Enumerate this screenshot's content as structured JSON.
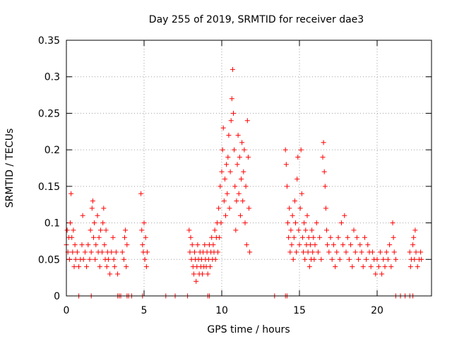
{
  "chart_data": {
    "type": "scatter",
    "title": "Day 255 of 2019, SRMTID for receiver dae3",
    "xlabel": "GPS time / hours",
    "ylabel": "SRMTID / TECUs",
    "xlim": [
      0,
      23.5
    ],
    "ylim": [
      0,
      0.35
    ],
    "x_ticks": [
      0,
      5,
      10,
      15,
      20
    ],
    "x_tick_labels": [
      "0",
      "5",
      "10",
      "15",
      "20"
    ],
    "y_ticks": [
      0,
      0.05,
      0.1,
      0.15,
      0.2,
      0.25,
      0.3,
      0.35
    ],
    "y_tick_labels": [
      "0",
      "0.05",
      "0.1",
      "0.15",
      "0.2",
      "0.25",
      "0.3",
      "0.35"
    ],
    "grid": true,
    "marker": "+",
    "color": "#ff0000",
    "series": [
      {
        "name": "SRMTID",
        "points": [
          [
            0.0,
            0.07
          ],
          [
            0.05,
            0.09
          ],
          [
            0.1,
            0.06
          ],
          [
            0.15,
            0.08
          ],
          [
            0.2,
            0.05
          ],
          [
            0.25,
            0.1
          ],
          [
            0.3,
            0.14
          ],
          [
            0.35,
            0.08
          ],
          [
            0.4,
            0.06
          ],
          [
            0.45,
            0.09
          ],
          [
            0.5,
            0.04
          ],
          [
            0.55,
            0.07
          ],
          [
            0.6,
            0.05
          ],
          [
            0.7,
            0.06
          ],
          [
            0.8,
            0.04
          ],
          [
            0.9,
            0.05
          ],
          [
            1.0,
            0.07
          ],
          [
            1.05,
            0.11
          ],
          [
            1.1,
            0.05
          ],
          [
            1.2,
            0.06
          ],
          [
            1.3,
            0.04
          ],
          [
            1.4,
            0.07
          ],
          [
            1.5,
            0.05
          ],
          [
            1.55,
            0.09
          ],
          [
            1.6,
            0.06
          ],
          [
            1.65,
            0.12
          ],
          [
            1.7,
            0.13
          ],
          [
            1.75,
            0.08
          ],
          [
            1.8,
            0.1
          ],
          [
            1.85,
            0.05
          ],
          [
            1.9,
            0.07
          ],
          [
            2.0,
            0.11
          ],
          [
            2.05,
            0.06
          ],
          [
            2.1,
            0.08
          ],
          [
            2.15,
            0.04
          ],
          [
            2.2,
            0.09
          ],
          [
            2.3,
            0.06
          ],
          [
            2.35,
            0.1
          ],
          [
            2.4,
            0.12
          ],
          [
            2.45,
            0.07
          ],
          [
            2.5,
            0.05
          ],
          [
            2.55,
            0.09
          ],
          [
            2.6,
            0.04
          ],
          [
            2.65,
            0.06
          ],
          [
            2.7,
            0.05
          ],
          [
            2.8,
            0.03
          ],
          [
            2.9,
            0.06
          ],
          [
            3.0,
            0.08
          ],
          [
            3.05,
            0.05
          ],
          [
            3.1,
            0.04
          ],
          [
            3.2,
            0.06
          ],
          [
            3.3,
            0.03
          ],
          [
            3.6,
            0.06
          ],
          [
            3.7,
            0.05
          ],
          [
            3.75,
            0.08
          ],
          [
            3.8,
            0.09
          ],
          [
            3.85,
            0.04
          ],
          [
            3.9,
            0.07
          ],
          [
            4.8,
            0.14
          ],
          [
            4.85,
            0.09
          ],
          [
            4.9,
            0.07
          ],
          [
            4.95,
            0.06
          ],
          [
            5.0,
            0.1
          ],
          [
            5.05,
            0.05
          ],
          [
            5.1,
            0.08
          ],
          [
            5.15,
            0.04
          ],
          [
            5.2,
            0.06
          ],
          [
            7.9,
            0.09
          ],
          [
            7.95,
            0.06
          ],
          [
            8.0,
            0.08
          ],
          [
            8.05,
            0.05
          ],
          [
            8.1,
            0.07
          ],
          [
            8.15,
            0.04
          ],
          [
            8.2,
            0.03
          ],
          [
            8.25,
            0.06
          ],
          [
            8.3,
            0.05
          ],
          [
            8.35,
            0.02
          ],
          [
            8.4,
            0.04
          ],
          [
            8.45,
            0.07
          ],
          [
            8.5,
            0.05
          ],
          [
            8.55,
            0.03
          ],
          [
            8.6,
            0.06
          ],
          [
            8.65,
            0.04
          ],
          [
            8.7,
            0.05
          ],
          [
            8.75,
            0.03
          ],
          [
            8.8,
            0.06
          ],
          [
            8.85,
            0.04
          ],
          [
            8.9,
            0.07
          ],
          [
            8.95,
            0.05
          ],
          [
            9.0,
            0.04
          ],
          [
            9.05,
            0.06
          ],
          [
            9.1,
            0.03
          ],
          [
            9.15,
            0.05
          ],
          [
            9.2,
            0.07
          ],
          [
            9.25,
            0.04
          ],
          [
            9.3,
            0.06
          ],
          [
            9.35,
            0.08
          ],
          [
            9.4,
            0.05
          ],
          [
            9.45,
            0.07
          ],
          [
            9.5,
            0.06
          ],
          [
            9.55,
            0.09
          ],
          [
            9.6,
            0.05
          ],
          [
            9.65,
            0.08
          ],
          [
            9.7,
            0.1
          ],
          [
            9.75,
            0.06
          ],
          [
            9.8,
            0.12
          ],
          [
            9.85,
            0.08
          ],
          [
            9.9,
            0.15
          ],
          [
            9.95,
            0.1
          ],
          [
            10.0,
            0.17
          ],
          [
            10.05,
            0.2
          ],
          [
            10.1,
            0.23
          ],
          [
            10.15,
            0.13
          ],
          [
            10.2,
            0.16
          ],
          [
            10.25,
            0.11
          ],
          [
            10.3,
            0.18
          ],
          [
            10.35,
            0.14
          ],
          [
            10.4,
            0.19
          ],
          [
            10.45,
            0.22
          ],
          [
            10.5,
            0.12
          ],
          [
            10.55,
            0.17
          ],
          [
            10.6,
            0.24
          ],
          [
            10.65,
            0.27
          ],
          [
            10.7,
            0.31
          ],
          [
            10.75,
            0.25
          ],
          [
            10.8,
            0.2
          ],
          [
            10.85,
            0.15
          ],
          [
            10.9,
            0.09
          ],
          [
            10.95,
            0.13
          ],
          [
            11.0,
            0.18
          ],
          [
            11.05,
            0.22
          ],
          [
            11.1,
            0.14
          ],
          [
            11.15,
            0.19
          ],
          [
            11.2,
            0.11
          ],
          [
            11.25,
            0.16
          ],
          [
            11.3,
            0.21
          ],
          [
            11.35,
            0.13
          ],
          [
            11.4,
            0.17
          ],
          [
            11.45,
            0.2
          ],
          [
            11.5,
            0.1
          ],
          [
            11.55,
            0.15
          ],
          [
            11.6,
            0.07
          ],
          [
            11.65,
            0.24
          ],
          [
            11.7,
            0.19
          ],
          [
            11.75,
            0.12
          ],
          [
            11.8,
            0.06
          ],
          [
            14.1,
            0.2
          ],
          [
            14.15,
            0.18
          ],
          [
            14.2,
            0.15
          ],
          [
            14.25,
            0.1
          ],
          [
            14.3,
            0.08
          ],
          [
            14.35,
            0.12
          ],
          [
            14.4,
            0.06
          ],
          [
            14.45,
            0.09
          ],
          [
            14.5,
            0.07
          ],
          [
            14.55,
            0.11
          ],
          [
            14.6,
            0.05
          ],
          [
            14.65,
            0.08
          ],
          [
            14.7,
            0.13
          ],
          [
            14.75,
            0.1
          ],
          [
            14.8,
            0.06
          ],
          [
            14.85,
            0.16
          ],
          [
            14.9,
            0.19
          ],
          [
            14.95,
            0.09
          ],
          [
            15.0,
            0.07
          ],
          [
            15.05,
            0.12
          ],
          [
            15.1,
            0.2
          ],
          [
            15.15,
            0.14
          ],
          [
            15.2,
            0.08
          ],
          [
            15.25,
            0.06
          ],
          [
            15.3,
            0.1
          ],
          [
            15.35,
            0.05
          ],
          [
            15.4,
            0.09
          ],
          [
            15.45,
            0.07
          ],
          [
            15.5,
            0.11
          ],
          [
            15.55,
            0.06
          ],
          [
            15.6,
            0.08
          ],
          [
            15.65,
            0.04
          ],
          [
            15.7,
            0.07
          ],
          [
            15.75,
            0.05
          ],
          [
            15.8,
            0.09
          ],
          [
            15.85,
            0.06
          ],
          [
            15.9,
            0.08
          ],
          [
            15.95,
            0.05
          ],
          [
            16.0,
            0.07
          ],
          [
            16.1,
            0.1
          ],
          [
            16.2,
            0.06
          ],
          [
            16.3,
            0.08
          ],
          [
            16.4,
            0.05
          ],
          [
            16.5,
            0.19
          ],
          [
            16.55,
            0.21
          ],
          [
            16.6,
            0.17
          ],
          [
            16.65,
            0.15
          ],
          [
            16.7,
            0.12
          ],
          [
            16.75,
            0.09
          ],
          [
            16.8,
            0.07
          ],
          [
            16.9,
            0.06
          ],
          [
            17.0,
            0.08
          ],
          [
            17.1,
            0.05
          ],
          [
            17.2,
            0.07
          ],
          [
            17.3,
            0.04
          ],
          [
            17.4,
            0.06
          ],
          [
            17.5,
            0.08
          ],
          [
            17.6,
            0.05
          ],
          [
            17.7,
            0.1
          ],
          [
            17.8,
            0.07
          ],
          [
            17.9,
            0.11
          ],
          [
            18.0,
            0.06
          ],
          [
            18.1,
            0.08
          ],
          [
            18.2,
            0.05
          ],
          [
            18.3,
            0.07
          ],
          [
            18.4,
            0.04
          ],
          [
            18.5,
            0.09
          ],
          [
            18.6,
            0.06
          ],
          [
            18.7,
            0.08
          ],
          [
            18.8,
            0.05
          ],
          [
            18.9,
            0.07
          ],
          [
            19.0,
            0.06
          ],
          [
            19.1,
            0.04
          ],
          [
            19.2,
            0.08
          ],
          [
            19.3,
            0.05
          ],
          [
            19.4,
            0.07
          ],
          [
            19.5,
            0.06
          ],
          [
            19.6,
            0.04
          ],
          [
            19.7,
            0.06
          ],
          [
            19.8,
            0.05
          ],
          [
            19.9,
            0.03
          ],
          [
            20.0,
            0.05
          ],
          [
            20.1,
            0.04
          ],
          [
            20.2,
            0.06
          ],
          [
            20.3,
            0.03
          ],
          [
            20.4,
            0.05
          ],
          [
            20.5,
            0.04
          ],
          [
            20.6,
            0.06
          ],
          [
            20.7,
            0.05
          ],
          [
            20.8,
            0.07
          ],
          [
            20.9,
            0.04
          ],
          [
            21.0,
            0.1
          ],
          [
            21.05,
            0.08
          ],
          [
            21.1,
            0.06
          ],
          [
            21.2,
            0.05
          ],
          [
            22.1,
            0.06
          ],
          [
            22.15,
            0.04
          ],
          [
            22.2,
            0.05
          ],
          [
            22.3,
            0.07
          ],
          [
            22.35,
            0.08
          ],
          [
            22.4,
            0.05
          ],
          [
            22.45,
            0.09
          ],
          [
            22.5,
            0.06
          ],
          [
            22.6,
            0.04
          ],
          [
            22.7,
            0.05
          ],
          [
            22.8,
            0.06
          ],
          [
            22.85,
            0.05
          ]
        ],
        "zero_points_x": [
          0.8,
          1.6,
          3.3,
          3.4,
          3.5,
          3.9,
          4.0,
          4.2,
          4.9,
          6.4,
          7.0,
          7.8,
          9.1,
          9.2,
          13.4,
          14.1,
          14.2,
          21.2,
          21.5,
          21.8,
          22.1,
          22.3
        ]
      }
    ]
  }
}
